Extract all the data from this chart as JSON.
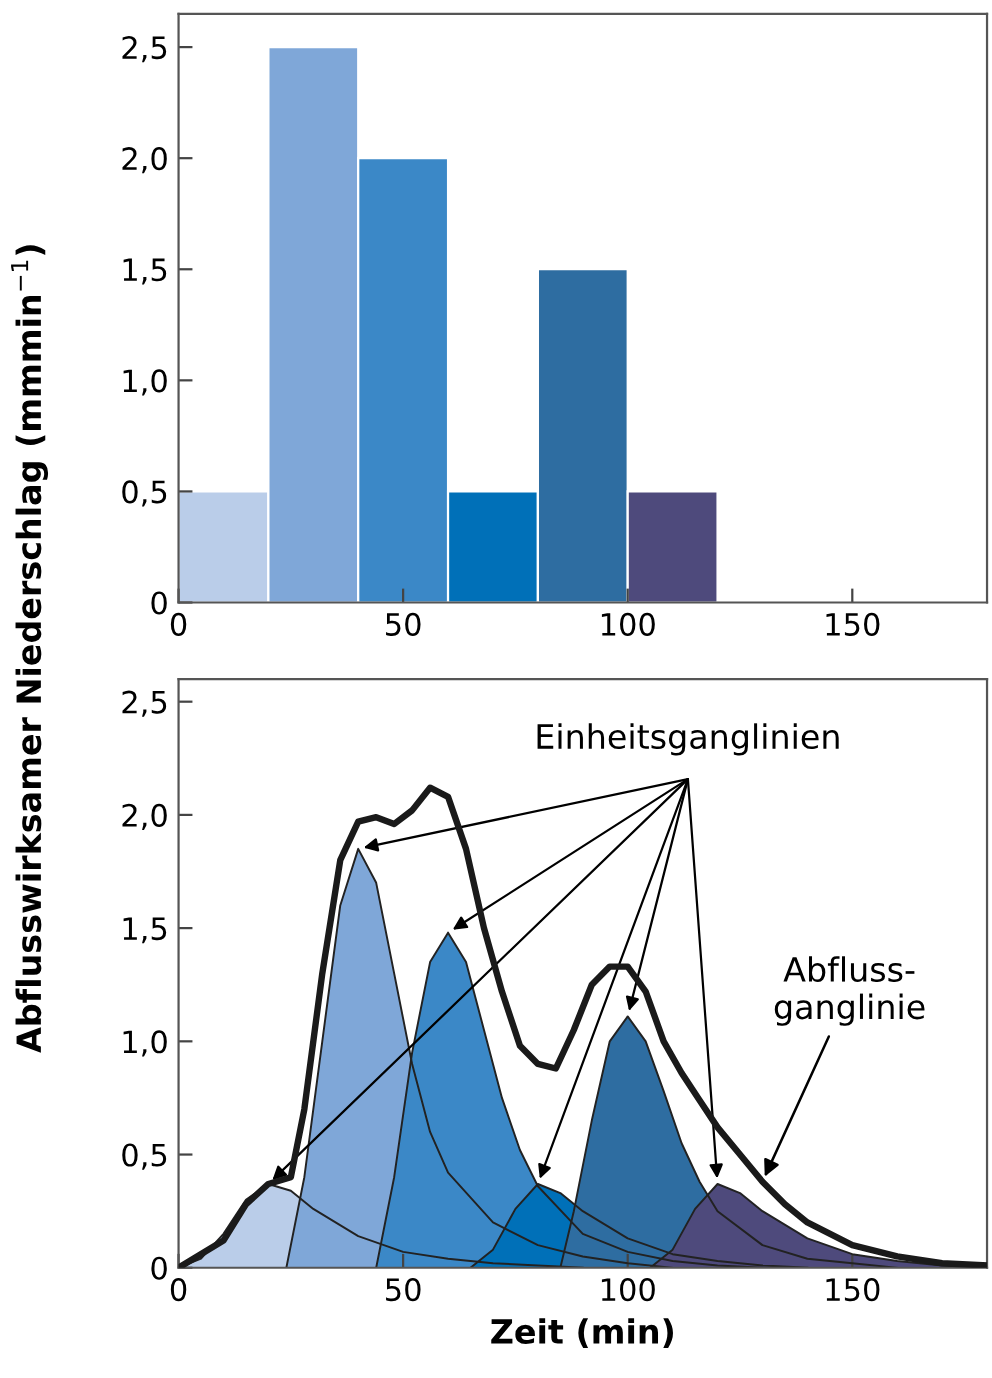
{
  "chart_data": [
    {
      "type": "histogram",
      "ylabel": "Abflusswirksamer Niederschlag (mmmin$^{−1}$)",
      "bins": [
        0,
        20,
        40,
        60,
        80,
        100,
        120
      ],
      "values": [
        0.5,
        2.5,
        2.0,
        0.5,
        1.5,
        0.5
      ],
      "colors": [
        "#bacde9",
        "#7fa7d8",
        "#3b88c7",
        "#0070b8",
        "#2e6da1",
        "#4e4a7c"
      ],
      "xlim": [
        0,
        180
      ],
      "xticks": [
        0,
        50,
        100,
        150
      ],
      "ylim": [
        0,
        2.65
      ],
      "yticks": [
        0,
        {
          "value": 0.5,
          "label": "0,5"
        },
        {
          "value": 1.0,
          "label": "1,0"
        },
        {
          "value": 1.5,
          "label": "1,5"
        },
        {
          "value": 2.0,
          "label": "2,0"
        },
        {
          "value": 2.5,
          "label": "2,5"
        }
      ],
      "grid": false
    },
    {
      "type": "area",
      "xlabel": "Zeit (min)",
      "xlim": [
        0,
        180
      ],
      "xticks": [
        0,
        50,
        100,
        150
      ],
      "ylim": [
        0,
        2.6
      ],
      "yticks": [
        0,
        {
          "value": 0.5,
          "label": "0,5"
        },
        {
          "value": 1.0,
          "label": "1,0"
        },
        {
          "value": 1.5,
          "label": "1,5"
        },
        {
          "value": 2.0,
          "label": "2,0"
        },
        {
          "value": 2.5,
          "label": "2,5"
        }
      ],
      "grid": false,
      "annotations": [
        {
          "text": "Einheitsganglinien",
          "x": 40,
          "y": 1.85
        },
        {
          "text": "Abfluss-\nganglinie",
          "x": 130,
          "y": 0.38
        }
      ],
      "series": [
        {
          "type": "area",
          "color": "#bacde9",
          "x": [
            0,
            5,
            10,
            15,
            20,
            25,
            30,
            40,
            50,
            60,
            70,
            80,
            90
          ],
          "values": [
            0,
            0.04,
            0.15,
            0.3,
            0.37,
            0.34,
            0.26,
            0.14,
            0.07,
            0.04,
            0.02,
            0.01,
            0
          ]
        },
        {
          "type": "area",
          "color": "#7fa7d8",
          "x": [
            24,
            28,
            32,
            36,
            40,
            44,
            48,
            52,
            56,
            60,
            70,
            80,
            90,
            100,
            110
          ],
          "values": [
            0,
            0.4,
            1.0,
            1.6,
            1.85,
            1.7,
            1.3,
            0.9,
            0.6,
            0.42,
            0.2,
            0.1,
            0.05,
            0.02,
            0
          ]
        },
        {
          "type": "area",
          "color": "#3b88c7",
          "x": [
            44,
            48,
            52,
            56,
            60,
            64,
            68,
            72,
            76,
            80,
            90,
            100,
            110,
            120,
            130
          ],
          "values": [
            0,
            0.4,
            0.95,
            1.35,
            1.48,
            1.35,
            1.05,
            0.75,
            0.52,
            0.36,
            0.15,
            0.07,
            0.03,
            0.01,
            0
          ]
        },
        {
          "type": "area",
          "color": "#0070b8",
          "x": [
            65,
            70,
            75,
            80,
            85,
            90,
            100,
            110,
            120,
            130,
            140
          ],
          "values": [
            0,
            0.08,
            0.26,
            0.37,
            0.33,
            0.25,
            0.13,
            0.06,
            0.03,
            0.01,
            0
          ]
        },
        {
          "type": "area",
          "color": "#2e6da1",
          "x": [
            85,
            88,
            92,
            96,
            100,
            104,
            108,
            112,
            116,
            120,
            130,
            140,
            150,
            160
          ],
          "values": [
            0,
            0.25,
            0.65,
            1.0,
            1.11,
            1.0,
            0.78,
            0.55,
            0.38,
            0.25,
            0.1,
            0.04,
            0.02,
            0
          ]
        },
        {
          "type": "area",
          "color": "#4e4a7c",
          "x": [
            105,
            110,
            115,
            120,
            125,
            130,
            140,
            150,
            160,
            170,
            180
          ],
          "values": [
            0,
            0.08,
            0.26,
            0.37,
            0.33,
            0.25,
            0.13,
            0.06,
            0.03,
            0.01,
            0
          ]
        },
        {
          "type": "line",
          "color": "#1a1a1a",
          "x": [
            0,
            10,
            15,
            20,
            25,
            28,
            32,
            36,
            40,
            44,
            48,
            52,
            56,
            60,
            64,
            68,
            72,
            76,
            80,
            84,
            88,
            92,
            96,
            100,
            104,
            108,
            112,
            116,
            120,
            125,
            130,
            135,
            140,
            150,
            160,
            170,
            180
          ],
          "values": [
            0,
            0.12,
            0.28,
            0.37,
            0.4,
            0.7,
            1.3,
            1.8,
            1.97,
            1.99,
            1.96,
            2.02,
            2.12,
            2.08,
            1.85,
            1.5,
            1.22,
            0.98,
            0.9,
            0.88,
            1.05,
            1.25,
            1.33,
            1.33,
            1.22,
            1.0,
            0.86,
            0.74,
            0.62,
            0.5,
            0.38,
            0.28,
            0.2,
            0.1,
            0.05,
            0.02,
            0.01
          ]
        }
      ]
    }
  ]
}
